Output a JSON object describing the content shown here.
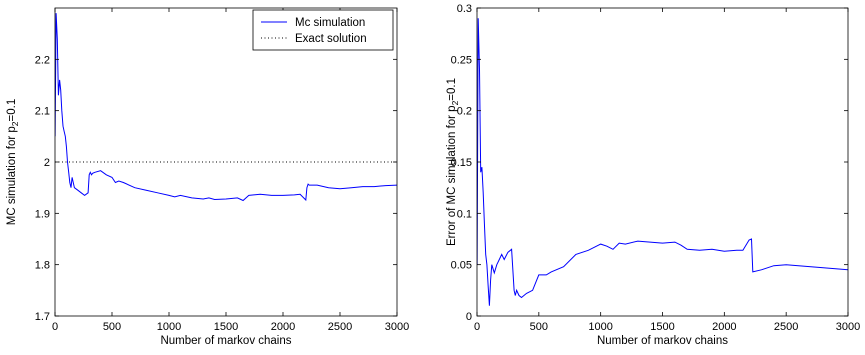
{
  "chart_data": [
    {
      "type": "line",
      "xlabel": "Number of markov chains",
      "ylabel_main": "MC simulation for p",
      "ylabel_sub": "2",
      "ylabel_tail": "=0.1",
      "xlim": [
        0,
        3000
      ],
      "ylim": [
        1.7,
        2.3
      ],
      "xticks": [
        0,
        500,
        1000,
        1500,
        2000,
        2500,
        3000
      ],
      "yticks": [
        1.7,
        1.8,
        1.9,
        2.0,
        2.1,
        2.2
      ],
      "ytick_labels": [
        "1.7",
        "1.8",
        "1.9",
        "2",
        "2.1",
        "2.2"
      ],
      "grid": false,
      "legend_position": "top-right",
      "series": [
        {
          "name": "Mc simulation",
          "color": "#0000ff",
          "style": "solid",
          "x": [
            1,
            10,
            20,
            30,
            40,
            50,
            60,
            70,
            80,
            90,
            100,
            110,
            120,
            130,
            140,
            150,
            170,
            200,
            230,
            260,
            290,
            300,
            310,
            320,
            330,
            350,
            400,
            450,
            500,
            530,
            560,
            600,
            700,
            800,
            900,
            1000,
            1050,
            1100,
            1200,
            1300,
            1350,
            1400,
            1500,
            1600,
            1650,
            1700,
            1800,
            1900,
            2000,
            2100,
            2150,
            2200,
            2210,
            2220,
            2230,
            2300,
            2400,
            2500,
            2600,
            2700,
            2800,
            2900,
            3000
          ],
          "y": [
            2.05,
            2.29,
            2.24,
            2.13,
            2.16,
            2.14,
            2.1,
            2.07,
            2.06,
            2.05,
            2.03,
            2.0,
            1.98,
            1.96,
            1.95,
            1.97,
            1.95,
            1.945,
            1.94,
            1.935,
            1.94,
            1.975,
            1.98,
            1.975,
            1.978,
            1.98,
            1.983,
            1.975,
            1.97,
            1.96,
            1.963,
            1.96,
            1.95,
            1.945,
            1.94,
            1.935,
            1.932,
            1.935,
            1.93,
            1.928,
            1.93,
            1.927,
            1.928,
            1.93,
            1.925,
            1.935,
            1.937,
            1.935,
            1.935,
            1.936,
            1.937,
            1.926,
            1.95,
            1.957,
            1.955,
            1.955,
            1.95,
            1.948,
            1.95,
            1.952,
            1.952,
            1.954,
            1.955
          ]
        },
        {
          "name": "Exact solution",
          "color": "#000000",
          "style": "dotted",
          "x": [
            0,
            3000
          ],
          "y": [
            2.0,
            2.0
          ]
        }
      ]
    },
    {
      "type": "line",
      "xlabel": "Number of markov chains",
      "ylabel_main": "Error of MC simulation for p",
      "ylabel_sub": "2",
      "ylabel_tail": "=0.1",
      "xlim": [
        0,
        3000
      ],
      "ylim": [
        0,
        0.3
      ],
      "xticks": [
        0,
        500,
        1000,
        1500,
        2000,
        2500,
        3000
      ],
      "yticks": [
        0,
        0.05,
        0.1,
        0.15,
        0.2,
        0.25,
        0.3
      ],
      "ytick_labels": [
        "0",
        "0.05",
        "0.1",
        "0.15",
        "0.2",
        "0.25",
        "0.3"
      ],
      "grid": false,
      "series": [
        {
          "color": "#0000ff",
          "style": "solid",
          "x": [
            1,
            10,
            20,
            30,
            40,
            50,
            60,
            70,
            80,
            90,
            100,
            110,
            120,
            140,
            160,
            180,
            200,
            220,
            250,
            280,
            300,
            310,
            320,
            340,
            360,
            400,
            450,
            500,
            520,
            560,
            600,
            700,
            800,
            900,
            1000,
            1050,
            1100,
            1150,
            1200,
            1300,
            1400,
            1500,
            1600,
            1650,
            1700,
            1800,
            1900,
            2000,
            2100,
            2150,
            2200,
            2220,
            2230,
            2300,
            2400,
            2500,
            2600,
            2700,
            2800,
            2900,
            3000
          ],
          "y": [
            0.05,
            0.29,
            0.24,
            0.14,
            0.145,
            0.12,
            0.09,
            0.06,
            0.05,
            0.03,
            0.01,
            0.035,
            0.05,
            0.042,
            0.05,
            0.055,
            0.06,
            0.055,
            0.062,
            0.065,
            0.025,
            0.02,
            0.025,
            0.02,
            0.018,
            0.022,
            0.025,
            0.04,
            0.04,
            0.04,
            0.043,
            0.048,
            0.06,
            0.064,
            0.07,
            0.068,
            0.065,
            0.071,
            0.07,
            0.073,
            0.072,
            0.071,
            0.072,
            0.069,
            0.065,
            0.064,
            0.065,
            0.063,
            0.064,
            0.064,
            0.074,
            0.075,
            0.043,
            0.045,
            0.049,
            0.05,
            0.049,
            0.048,
            0.047,
            0.046,
            0.045
          ]
        }
      ]
    }
  ]
}
